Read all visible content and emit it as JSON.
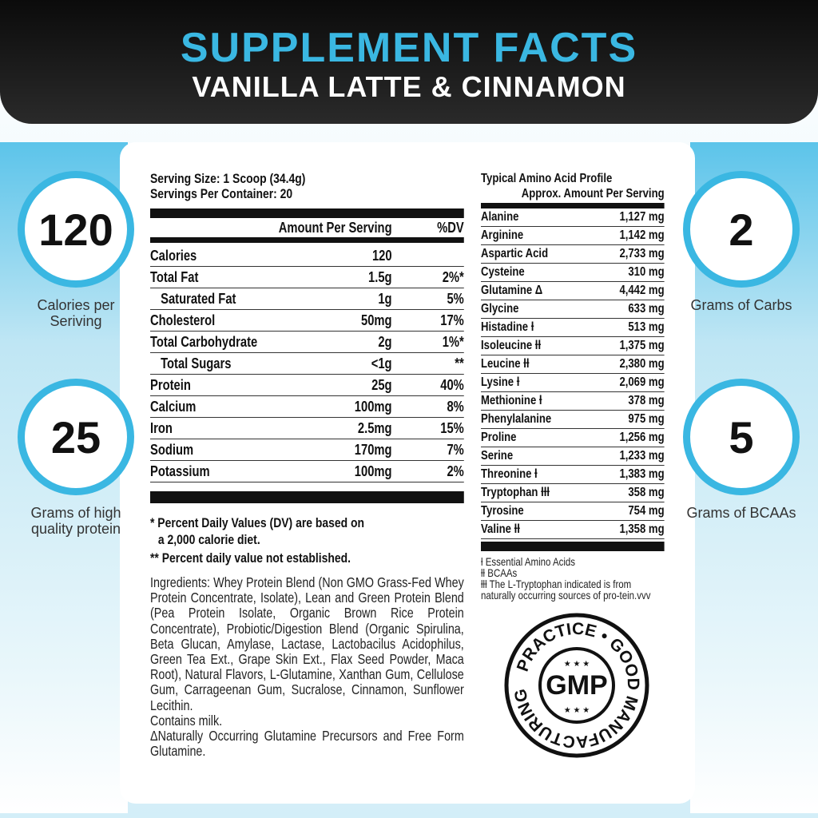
{
  "header": {
    "title": "SUPPLEMENT FACTS",
    "subtitle": "VANILLA LATTE & CINNAMON"
  },
  "colors": {
    "accent": "#3ab7e2",
    "header_bg": "#111111"
  },
  "highlights": [
    {
      "value": "120",
      "label": "Calories per Seriving"
    },
    {
      "value": "25",
      "label": "Grams of high quality protein"
    },
    {
      "value": "2",
      "label": "Grams of Carbs"
    },
    {
      "value": "5",
      "label": "Grams of BCAAs"
    }
  ],
  "nutrition": {
    "serving_size": "Serving Size: 1 Scoop (34.4g)",
    "servings_per_container": "Servings Per Container: 20",
    "col_amount": "Amount Per Serving",
    "col_dv": "%DV",
    "rows": [
      {
        "name": "Calories",
        "amount": "120",
        "dv": ""
      },
      {
        "name": "Total Fat",
        "amount": "1.5g",
        "dv": "2%*"
      },
      {
        "name": "Saturated Fat",
        "amount": "1g",
        "dv": "5%"
      },
      {
        "name": "Cholesterol",
        "amount": "50mg",
        "dv": "17%"
      },
      {
        "name": "Total Carbohydrate",
        "amount": "2g",
        "dv": "1%*"
      },
      {
        "name": "Total Sugars",
        "amount": "<1g",
        "dv": "**"
      },
      {
        "name": "Protein",
        "amount": "25g",
        "dv": "40%"
      },
      {
        "name": "Calcium",
        "amount": "100mg",
        "dv": "8%"
      },
      {
        "name": "Iron",
        "amount": "2.5mg",
        "dv": "15%"
      },
      {
        "name": "Sodium",
        "amount": "170mg",
        "dv": "7%"
      },
      {
        "name": "Potassium",
        "amount": "100mg",
        "dv": "2%"
      }
    ],
    "footnote1": "* Percent Daily Values (DV) are based on",
    "footnote1b": "a 2,000 calorie diet.",
    "footnote2": "** Percent daily value not established."
  },
  "ingredients": {
    "text": "Ingredients: Whey Protein Blend (Non GMO Grass-Fed Whey Protein Concentrate, Isolate), Lean and Green Protein Blend (Pea Protein Isolate, Organic Brown Rice Protein Concentrate), Probiotic/Digestion Blend (Organic Spirulina, Beta Glucan, Amylase, Lactase, Lactobacilus Acidophilus, Green Tea Ext., Grape Skin Ext., Flax Seed Powder, Maca Root), Natural Flavors, L-Glutamine, Xanthan Gum, Cellulose Gum, Carrageenan Gum, Sucralose, Cinnamon, Sunflower Lecithin.",
    "allergen": "Contains milk.",
    "note": "ΔNaturally Occurring Glutamine Precursors and Free Form Glutamine."
  },
  "amino": {
    "title": "Typical Amino Acid Profile",
    "subtitle": "Approx. Amount Per Serving",
    "rows": [
      {
        "name": "Alanine",
        "value": "1,127 mg"
      },
      {
        "name": "Arginine",
        "value": "1,142 mg"
      },
      {
        "name": "Aspartic Acid",
        "value": "2,733 mg"
      },
      {
        "name": "Cysteine",
        "value": "310 mg"
      },
      {
        "name": "Glutamine Δ",
        "value": "4,442 mg"
      },
      {
        "name": "Glycine",
        "value": "633 mg"
      },
      {
        "name": "Histadine ƚ",
        "value": "513 mg"
      },
      {
        "name": "Isoleucine ƚƚ",
        "value": "1,375 mg"
      },
      {
        "name": "Leucine ƚƚ",
        "value": "2,380 mg"
      },
      {
        "name": "Lysine ƚ",
        "value": "2,069 mg"
      },
      {
        "name": "Methionine ƚ",
        "value": "378 mg"
      },
      {
        "name": "Phenylalanine",
        "value": "975 mg"
      },
      {
        "name": "Proline",
        "value": "1,256 mg"
      },
      {
        "name": "Serine",
        "value": "1,233 mg"
      },
      {
        "name": "Threonine ƚ",
        "value": "1,383 mg"
      },
      {
        "name": "Tryptophan ƚƚƚ",
        "value": "358 mg"
      },
      {
        "name": "Tyrosine",
        "value": "754 mg"
      },
      {
        "name": "Valine ƚƚ",
        "value": "1,358 mg"
      }
    ],
    "notes": [
      "ƚ Essential Amino Acids",
      "ƚƚ BCAAs",
      "ƚƚƚ The L-Tryptophan indicated is from naturally occurring sources of pro-tein.vvv"
    ]
  },
  "seal": {
    "ring_text": "PRACTICE • GOOD MANUFACTURING",
    "center": "GMP"
  }
}
